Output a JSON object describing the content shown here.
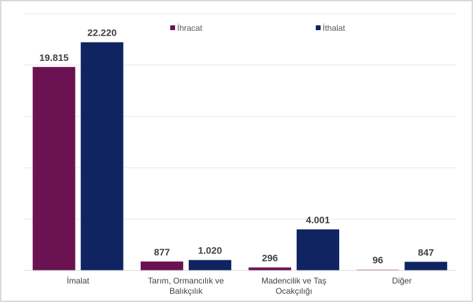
{
  "chart_data": {
    "type": "bar",
    "categories": [
      [
        "İmalat"
      ],
      [
        "Tarım, Ormancılık ve",
        "Balıkçılık"
      ],
      [
        "Madencilik ve Taş",
        "Ocakçılığı"
      ],
      [
        "Diğer"
      ]
    ],
    "series": [
      {
        "name": "İhracat",
        "color": "#6b1352",
        "values": [
          19815,
          877,
          296,
          96
        ],
        "labels": [
          "19.815",
          "877",
          "296",
          "96"
        ]
      },
      {
        "name": "İthalat",
        "color": "#0f2461",
        "values": [
          22220,
          1020,
          4001,
          847
        ],
        "labels": [
          "22.220",
          "1.020",
          "4.001",
          "847"
        ]
      }
    ],
    "ylim": [
      0,
      25000
    ],
    "grid": true,
    "legend_position": "top-center",
    "y_axis_labels_visible": false
  }
}
